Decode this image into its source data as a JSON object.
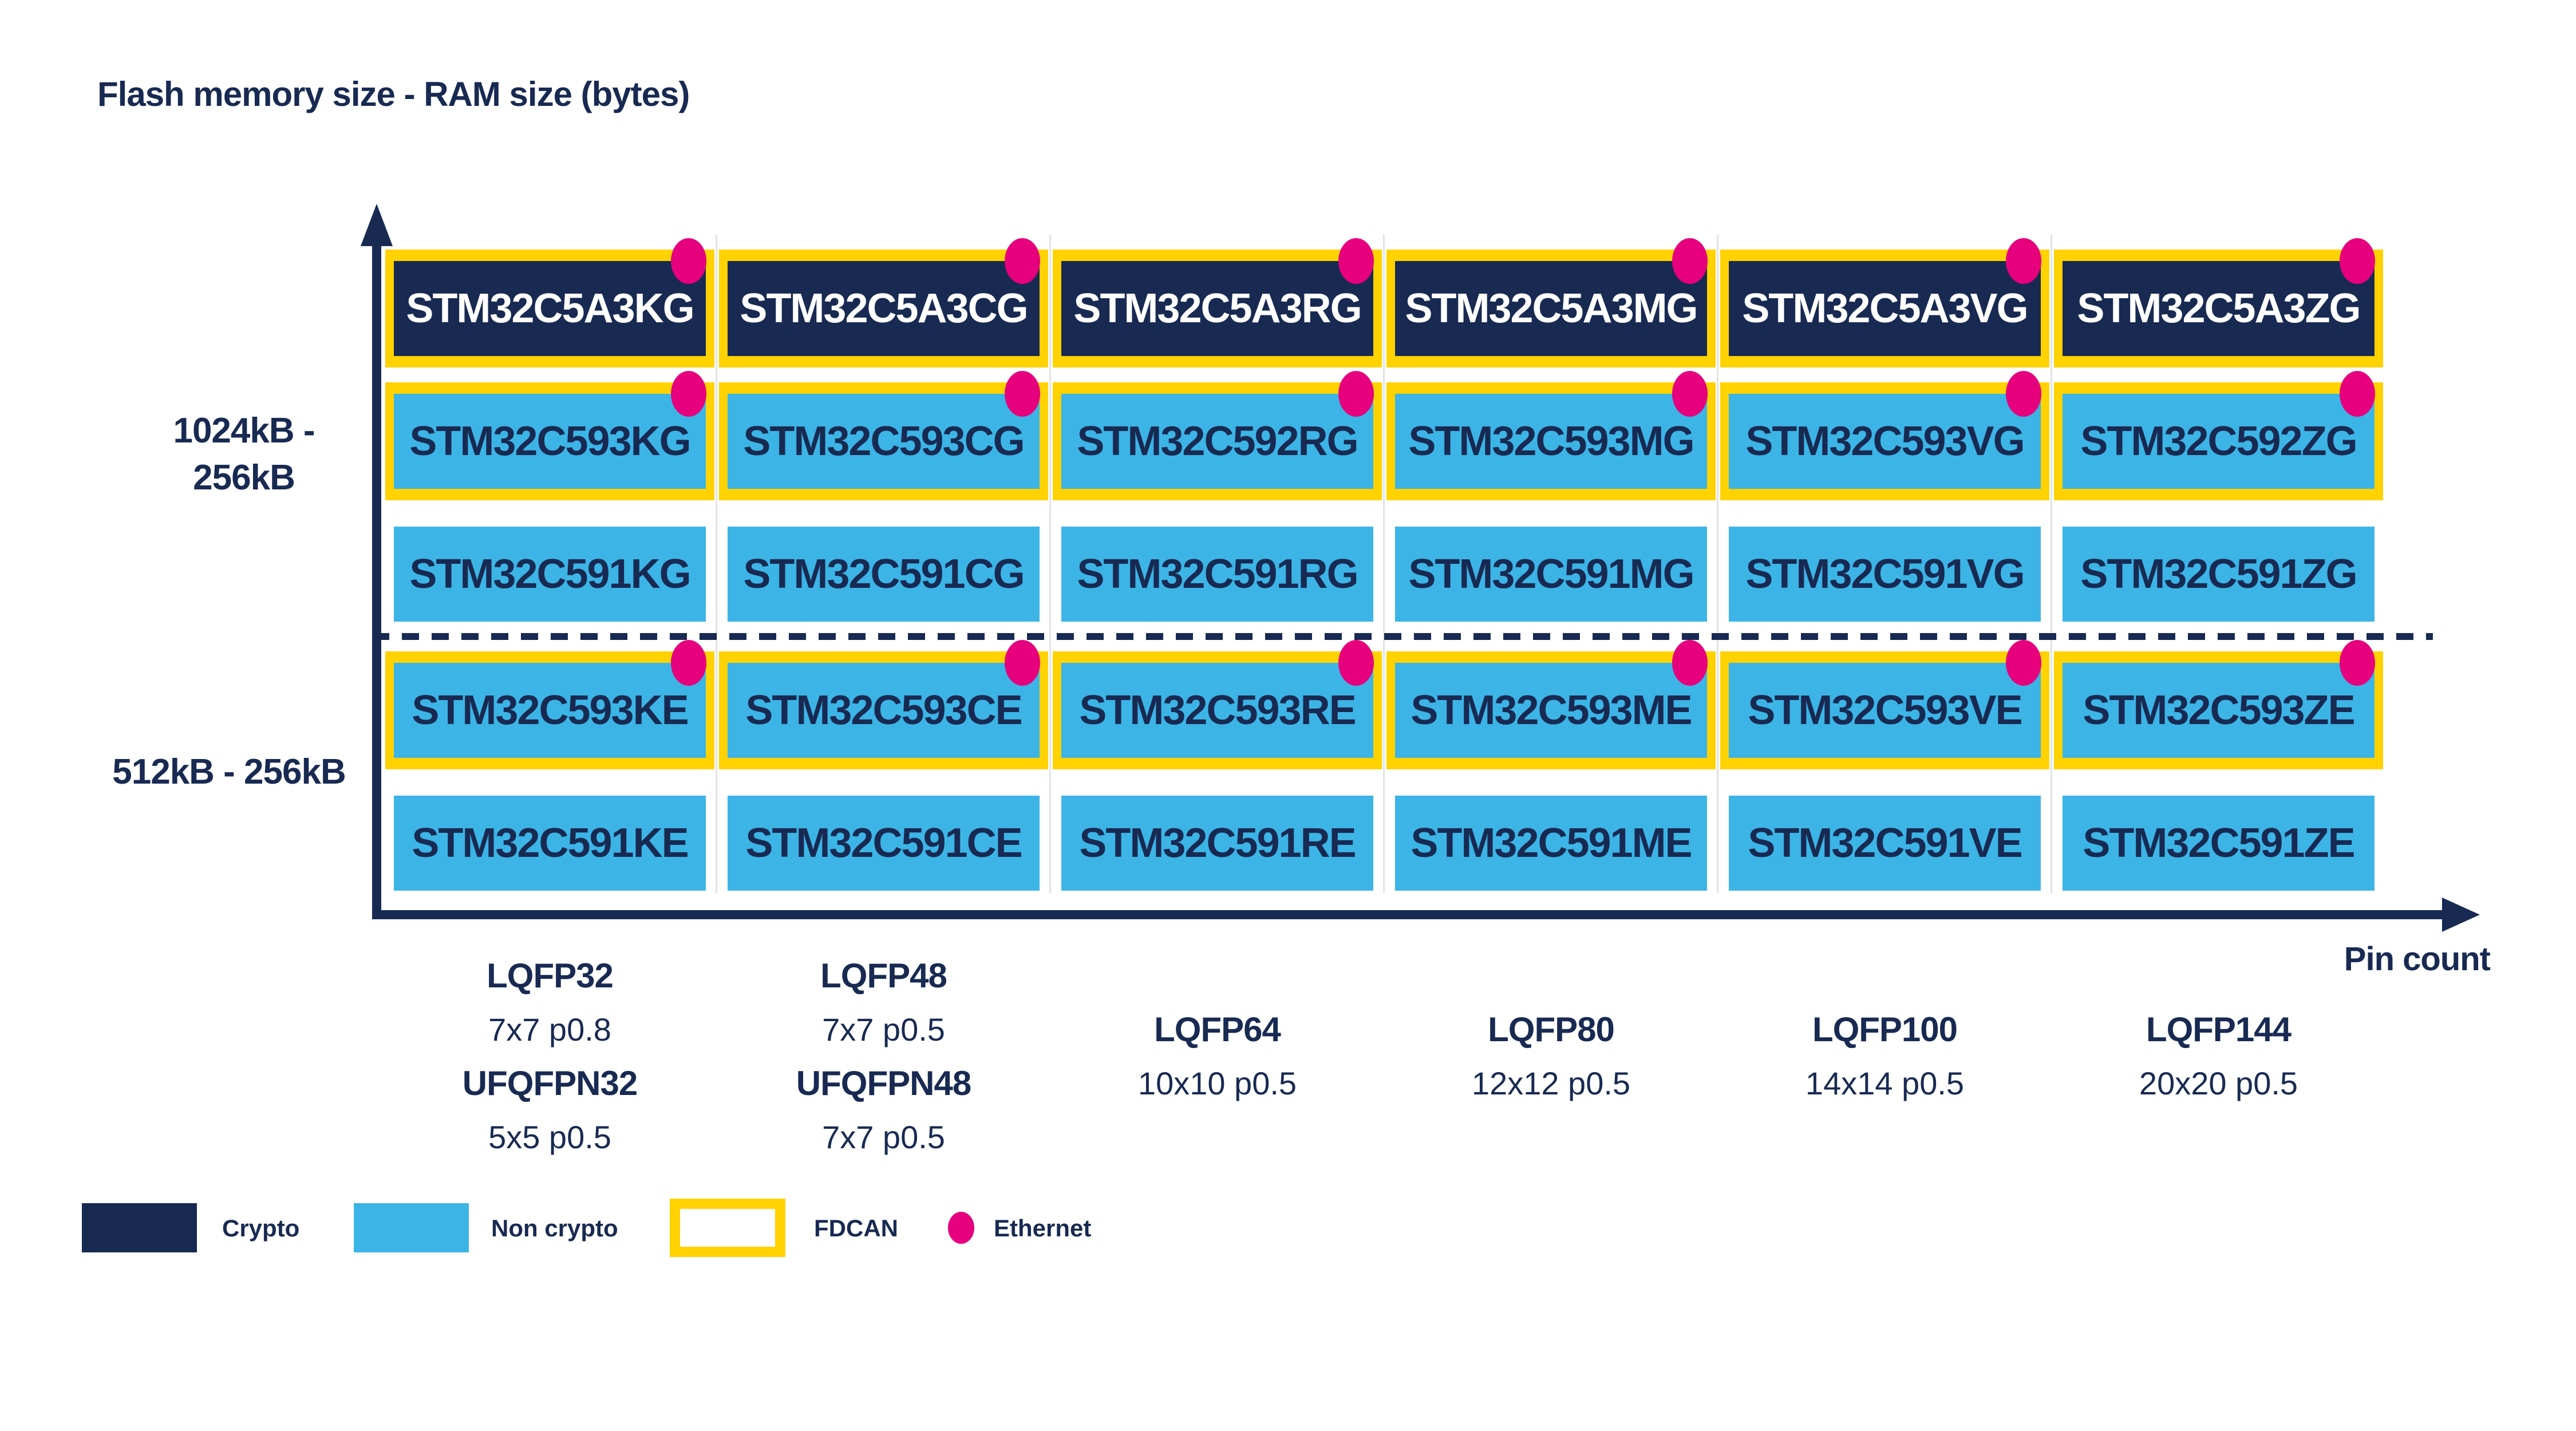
{
  "title": "Flash memory size - RAM size (bytes)",
  "y_axis_labels": {
    "top_line1": "1024kB -",
    "top_line2": "256kB",
    "bottom": "512kB - 256kB"
  },
  "x_axis_label": "Pin count",
  "rows": [
    {
      "group": "1024kB - 256kB",
      "style": "crypto",
      "fdcan": true,
      "ethernet": true,
      "chips": [
        "STM32C5A3KG",
        "STM32C5A3CG",
        "STM32C5A3RG",
        "STM32C5A3MG",
        "STM32C5A3VG",
        "STM32C5A3ZG"
      ]
    },
    {
      "group": "1024kB - 256kB",
      "style": "non-crypto",
      "fdcan": true,
      "ethernet": true,
      "chips": [
        "STM32C593KG",
        "STM32C593CG",
        "STM32C592RG",
        "STM32C593MG",
        "STM32C593VG",
        "STM32C592ZG"
      ]
    },
    {
      "group": "1024kB - 256kB",
      "style": "non-crypto",
      "fdcan": false,
      "ethernet": false,
      "chips": [
        "STM32C591KG",
        "STM32C591CG",
        "STM32C591RG",
        "STM32C591MG",
        "STM32C591VG",
        "STM32C591ZG"
      ]
    },
    {
      "group": "512kB - 256kB",
      "style": "non-crypto",
      "fdcan": true,
      "ethernet": true,
      "chips": [
        "STM32C593KE",
        "STM32C593CE",
        "STM32C593RE",
        "STM32C593ME",
        "STM32C593VE",
        "STM32C593ZE"
      ]
    },
    {
      "group": "512kB - 256kB",
      "style": "non-crypto",
      "fdcan": false,
      "ethernet": false,
      "chips": [
        "STM32C591KE",
        "STM32C591CE",
        "STM32C591RE",
        "STM32C591ME",
        "STM32C591VE",
        "STM32C591ZE"
      ]
    }
  ],
  "packages": [
    {
      "name": "LQFP32",
      "dim": "7x7 p0.8",
      "name2": "UFQFPN32",
      "dim2": "5x5 p0.5"
    },
    {
      "name": "LQFP48",
      "dim": "7x7 p0.5",
      "name2": "UFQFPN48",
      "dim2": "7x7 p0.5"
    },
    {
      "name": "LQFP64",
      "dim": "10x10 p0.5"
    },
    {
      "name": "LQFP80",
      "dim": "12x12 p0.5"
    },
    {
      "name": "LQFP100",
      "dim": "14x14 p0.5"
    },
    {
      "name": "LQFP144",
      "dim": "20x20 p0.5"
    }
  ],
  "legend": {
    "crypto": "Crypto",
    "non_crypto": "Non crypto",
    "fdcan": "FDCAN",
    "ethernet": "Ethernet"
  },
  "colors": {
    "navy": "#182A52",
    "light_blue": "#3CB4E6",
    "yellow": "#FFD200",
    "pink": "#E6007E"
  }
}
